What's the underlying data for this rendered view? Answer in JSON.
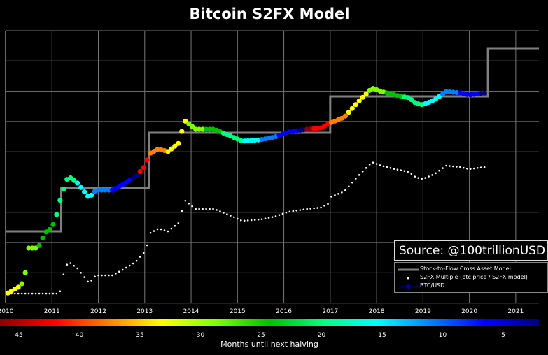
{
  "chart_data": {
    "type": "line",
    "title": "Bitcoin S2FX Model",
    "xlabel": "",
    "ylabel": "",
    "xlim": [
      2010.0,
      2021.5
    ],
    "x_ticks": [
      "2010",
      "2011",
      "2012",
      "2013",
      "2014",
      "2015",
      "2016",
      "2017",
      "2018",
      "2019",
      "2020",
      "2021"
    ],
    "y_scale": "log",
    "grid": true,
    "source_text": "Source:  @100trillionUSD",
    "legend_position": "bottom-right",
    "legend": [
      {
        "label": "Stock-to-Flow Cross Asset Model",
        "color": "#808080",
        "style": "line"
      },
      {
        "label": "S2FX Multiple (btc price / S2FX model)",
        "color": "#ffffff",
        "style": "dot"
      },
      {
        "label": "BTC/USD",
        "color": "#0000aa",
        "style": "dot-line"
      }
    ],
    "model_series": {
      "name": "Stock-to-Flow Cross Asset Model",
      "x": [
        2010.0,
        2011.2,
        2011.2,
        2013.1,
        2013.1,
        2017.0,
        2017.0,
        2020.4,
        2020.4,
        2021.5
      ],
      "level": [
        1,
        1,
        2,
        2,
        3,
        3,
        4,
        4,
        5,
        5
      ]
    },
    "colorbar": {
      "label": "Months until next halving",
      "ticks": [
        "45",
        "40",
        "35",
        "30",
        "25",
        "20",
        "15",
        "10",
        "5"
      ],
      "colors": [
        "#800000",
        "#ff0000",
        "#ff8000",
        "#ffff00",
        "#00c000",
        "#006400",
        "#00ffff",
        "#0000ff",
        "#000080"
      ]
    }
  }
}
